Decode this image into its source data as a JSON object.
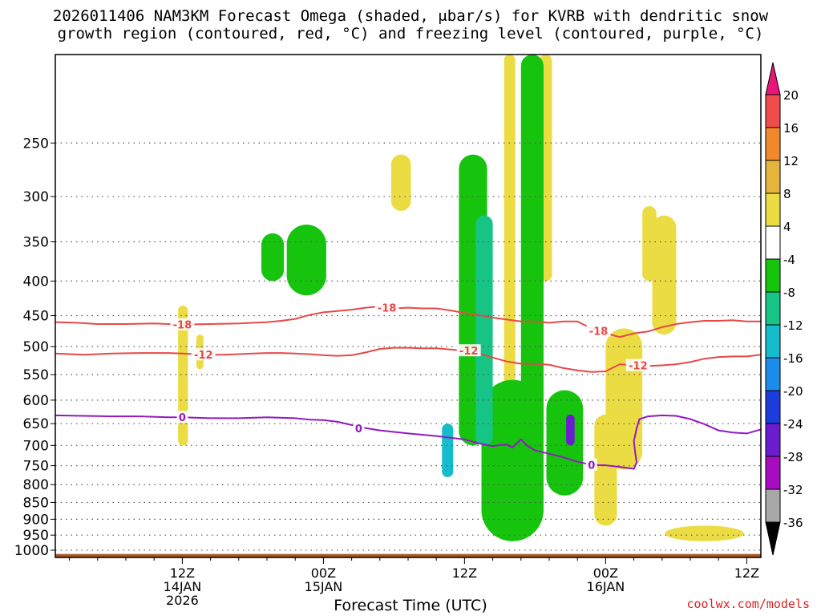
{
  "title_line1": "2026011406 NAM3KM Forecast Omega (shaded, μbar/s) for KVRB with dendritic snow",
  "title_line2": "growth region (contoured, red, °C) and freezing level (contoured, purple, °C)",
  "credit": "coolwx.com/models",
  "chart_data": {
    "type": "heatmap",
    "title": "2026011406 NAM3KM Forecast Omega (shaded, μbar/s) for KVRB with dendritic snow growth region (contoured, red, °C) and freezing level (contoured, purple, °C)",
    "xlabel": "Forecast Time (UTC)",
    "ylabel": "",
    "x_range_hours": [
      -9,
      41
    ],
    "y_range_hPa": [
      1025,
      185
    ],
    "y_ticks": [
      250,
      300,
      350,
      400,
      450,
      500,
      550,
      600,
      650,
      700,
      750,
      800,
      850,
      900,
      950,
      1000
    ],
    "x_ticks": [
      {
        "hour": 0,
        "lines": [
          "12Z",
          "14JAN",
          "2026"
        ]
      },
      {
        "hour": 10,
        "lines": [
          "00Z",
          "15JAN"
        ]
      },
      {
        "hour": 20,
        "lines": [
          "12Z"
        ]
      },
      {
        "hour": 30,
        "lines": [
          "00Z",
          "16JAN"
        ]
      },
      {
        "hour": 40,
        "lines": [
          "12Z"
        ]
      }
    ],
    "grid": true,
    "colorbar": {
      "levels": [
        "20",
        "16",
        "12",
        "8",
        "4",
        "-4",
        "-8",
        "-12",
        "-16",
        "-20",
        "-24",
        "-28",
        "-32",
        "-36"
      ],
      "colors": [
        "#e8157a",
        "#f04c4c",
        "#f0882c",
        "#e4b43c",
        "#ecdc44",
        "#ffffff",
        "#16c40e",
        "#16c486",
        "#14bccc",
        "#1c8cec",
        "#1c3cdc",
        "#6c1cd0",
        "#a80cc0",
        "#a8a8a8",
        "#000000"
      ]
    },
    "contours": [
      {
        "label": "-18",
        "color": "#e84848",
        "points": [
          [
            -9,
            460
          ],
          [
            -7.5,
            461
          ],
          [
            -6,
            463
          ],
          [
            -4,
            463
          ],
          [
            -2,
            462
          ],
          [
            0,
            464
          ],
          [
            2,
            463
          ],
          [
            4,
            462
          ],
          [
            6,
            460
          ],
          [
            7,
            458
          ],
          [
            8,
            455
          ],
          [
            9,
            449
          ],
          [
            10,
            445
          ],
          [
            11,
            443
          ],
          [
            12,
            441
          ],
          [
            13,
            438
          ],
          [
            14,
            436
          ],
          [
            15,
            439
          ],
          [
            16,
            438
          ],
          [
            17,
            439
          ],
          [
            18,
            439
          ],
          [
            19,
            442
          ],
          [
            20,
            446
          ],
          [
            21,
            449
          ],
          [
            22,
            453
          ],
          [
            23,
            456
          ],
          [
            24,
            459
          ],
          [
            25,
            459
          ],
          [
            26,
            461
          ],
          [
            27,
            459
          ],
          [
            28,
            459
          ],
          [
            29,
            470
          ],
          [
            30,
            478
          ],
          [
            31,
            484
          ],
          [
            32,
            478
          ],
          [
            33,
            475
          ],
          [
            34,
            468
          ],
          [
            35,
            463
          ],
          [
            36,
            460
          ],
          [
            37,
            458
          ],
          [
            38,
            458
          ],
          [
            39,
            457
          ],
          [
            40,
            459
          ],
          [
            41,
            459
          ]
        ],
        "label_positions": [
          [
            0,
            464
          ],
          [
            14.5,
            438
          ],
          [
            29.5,
            474
          ]
        ]
      },
      {
        "label": "-12",
        "color": "#e84848",
        "points": [
          [
            -9,
            512
          ],
          [
            -7,
            514
          ],
          [
            -5,
            512
          ],
          [
            -3,
            511
          ],
          [
            -1,
            511
          ],
          [
            0,
            512
          ],
          [
            1,
            513
          ],
          [
            2,
            514
          ],
          [
            3,
            514
          ],
          [
            4,
            513
          ],
          [
            5,
            512
          ],
          [
            6,
            511
          ],
          [
            7,
            511
          ],
          [
            8,
            512
          ],
          [
            9,
            513
          ],
          [
            10,
            515
          ],
          [
            11,
            516
          ],
          [
            12,
            515
          ],
          [
            13,
            510
          ],
          [
            14,
            504
          ],
          [
            15,
            502
          ],
          [
            16,
            502
          ],
          [
            17,
            503
          ],
          [
            18,
            503
          ],
          [
            19,
            505
          ],
          [
            20,
            507
          ],
          [
            21,
            512
          ],
          [
            22,
            519
          ],
          [
            23,
            526
          ],
          [
            24,
            530
          ],
          [
            25,
            530
          ],
          [
            26,
            532
          ],
          [
            27,
            538
          ],
          [
            28,
            542
          ],
          [
            29,
            545
          ],
          [
            30,
            544
          ],
          [
            31,
            531
          ],
          [
            32,
            533
          ],
          [
            33,
            534
          ],
          [
            34,
            533
          ],
          [
            35,
            531
          ],
          [
            36,
            527
          ],
          [
            37,
            521
          ],
          [
            38,
            518
          ],
          [
            39,
            517
          ],
          [
            40,
            517
          ],
          [
            41,
            514
          ]
        ],
        "label_positions": [
          [
            1.5,
            514
          ],
          [
            20.3,
            507
          ],
          [
            32.3,
            533
          ]
        ]
      },
      {
        "label": "0",
        "color": "#9418c4",
        "points": [
          [
            -9,
            632
          ],
          [
            -7,
            633
          ],
          [
            -5,
            634
          ],
          [
            -3,
            634
          ],
          [
            -1,
            636
          ],
          [
            0,
            636
          ],
          [
            2,
            638
          ],
          [
            4,
            638
          ],
          [
            6,
            636
          ],
          [
            8,
            638
          ],
          [
            9,
            641
          ],
          [
            10,
            642
          ],
          [
            11,
            646
          ],
          [
            12,
            653
          ],
          [
            13,
            660
          ],
          [
            14,
            665
          ],
          [
            16,
            672
          ],
          [
            18,
            678
          ],
          [
            20,
            686
          ],
          [
            21,
            695
          ],
          [
            22,
            702
          ],
          [
            22.5,
            699
          ],
          [
            23,
            698
          ],
          [
            23.4,
            705
          ],
          [
            24,
            686
          ],
          [
            24.5,
            702
          ],
          [
            25,
            712
          ],
          [
            26,
            720
          ],
          [
            27,
            729
          ],
          [
            28,
            740
          ],
          [
            29,
            748
          ],
          [
            30,
            749
          ],
          [
            31,
            753
          ],
          [
            32,
            758
          ],
          [
            32.2,
            742
          ],
          [
            32.1,
            720
          ],
          [
            32,
            690
          ],
          [
            32.2,
            660
          ],
          [
            32.4,
            640
          ],
          [
            33,
            634
          ],
          [
            34,
            632
          ],
          [
            35,
            633
          ],
          [
            36,
            640
          ],
          [
            37,
            651
          ],
          [
            38,
            665
          ],
          [
            39,
            670
          ],
          [
            40,
            672
          ],
          [
            41,
            663
          ],
          [
            41.5,
            657
          ]
        ],
        "label_positions": [
          [
            0,
            636
          ],
          [
            12.5,
            660
          ],
          [
            29,
            748
          ]
        ]
      }
    ],
    "shaded_regions": [
      {
        "value_class": "4 to 8",
        "color": "#ecdc44",
        "hours": [
          -0.3,
          0.4
        ],
        "hPa": [
          435,
          700
        ]
      },
      {
        "value_class": "4 to 8",
        "color": "#ecdc44",
        "hours": [
          1.0,
          1.5
        ],
        "hPa": [
          480,
          540
        ]
      },
      {
        "value_class": "4 to 8",
        "color": "#ecdc44",
        "hours": [
          14.8,
          16.2
        ],
        "hPa": [
          260,
          315
        ]
      },
      {
        "value_class": "4 to 8",
        "color": "#ecdc44",
        "hours": [
          22.8,
          23.6
        ],
        "hPa": [
          185,
          720
        ]
      },
      {
        "value_class": "4 to 8",
        "color": "#ecdc44",
        "hours": [
          25.3,
          26.2
        ],
        "hPa": [
          185,
          400
        ]
      },
      {
        "value_class": "4 to 8",
        "color": "#ecdc44",
        "hours": [
          29.2,
          30.8
        ],
        "hPa": [
          630,
          920
        ]
      },
      {
        "value_class": "4 to 8",
        "color": "#ecdc44",
        "hours": [
          30.0,
          32.6
        ],
        "hPa": [
          470,
          760
        ]
      },
      {
        "value_class": "4 to 8",
        "color": "#ecdc44",
        "hours": [
          32.6,
          33.6
        ],
        "hPa": [
          310,
          400
        ]
      },
      {
        "value_class": "4 to 8",
        "color": "#ecdc44",
        "hours": [
          33.3,
          35.0
        ],
        "hPa": [
          320,
          480
        ]
      },
      {
        "value_class": "4 to 8",
        "color": "#ecdc44",
        "hours": [
          34.2,
          39.8
        ],
        "hPa": [
          920,
          970
        ]
      },
      {
        "value_class": "-4 to -8",
        "color": "#16c40e",
        "hours": [
          5.6,
          7.2
        ],
        "hPa": [
          340,
          400
        ]
      },
      {
        "value_class": "-4 to -8",
        "color": "#16c40e",
        "hours": [
          7.4,
          10.2
        ],
        "hPa": [
          330,
          420
        ]
      },
      {
        "value_class": "-4 to -8",
        "color": "#16c40e",
        "hours": [
          19.6,
          21.6
        ],
        "hPa": [
          260,
          700
        ]
      },
      {
        "value_class": "-4 to -8",
        "color": "#16c40e",
        "hours": [
          24.0,
          25.6
        ],
        "hPa": [
          185,
          700
        ]
      },
      {
        "value_class": "-4 to -8",
        "color": "#16c40e",
        "hours": [
          21.2,
          25.6
        ],
        "hPa": [
          560,
          970
        ]
      },
      {
        "value_class": "-4 to -8",
        "color": "#16c40e",
        "hours": [
          25.8,
          28.4
        ],
        "hPa": [
          580,
          830
        ]
      },
      {
        "value_class": "-8 to -12",
        "color": "#16c486",
        "hours": [
          20.8,
          22.0
        ],
        "hPa": [
          320,
          700
        ]
      },
      {
        "value_class": "-12 to -16",
        "color": "#14bccc",
        "hours": [
          18.4,
          19.2
        ],
        "hPa": [
          650,
          780
        ]
      },
      {
        "value_class": "-24 to -28",
        "color": "#6c1cd0",
        "hours": [
          27.2,
          27.8
        ],
        "hPa": [
          630,
          700
        ]
      }
    ],
    "terrain": {
      "color": "#a85828",
      "surface_hPa": 1013
    }
  }
}
